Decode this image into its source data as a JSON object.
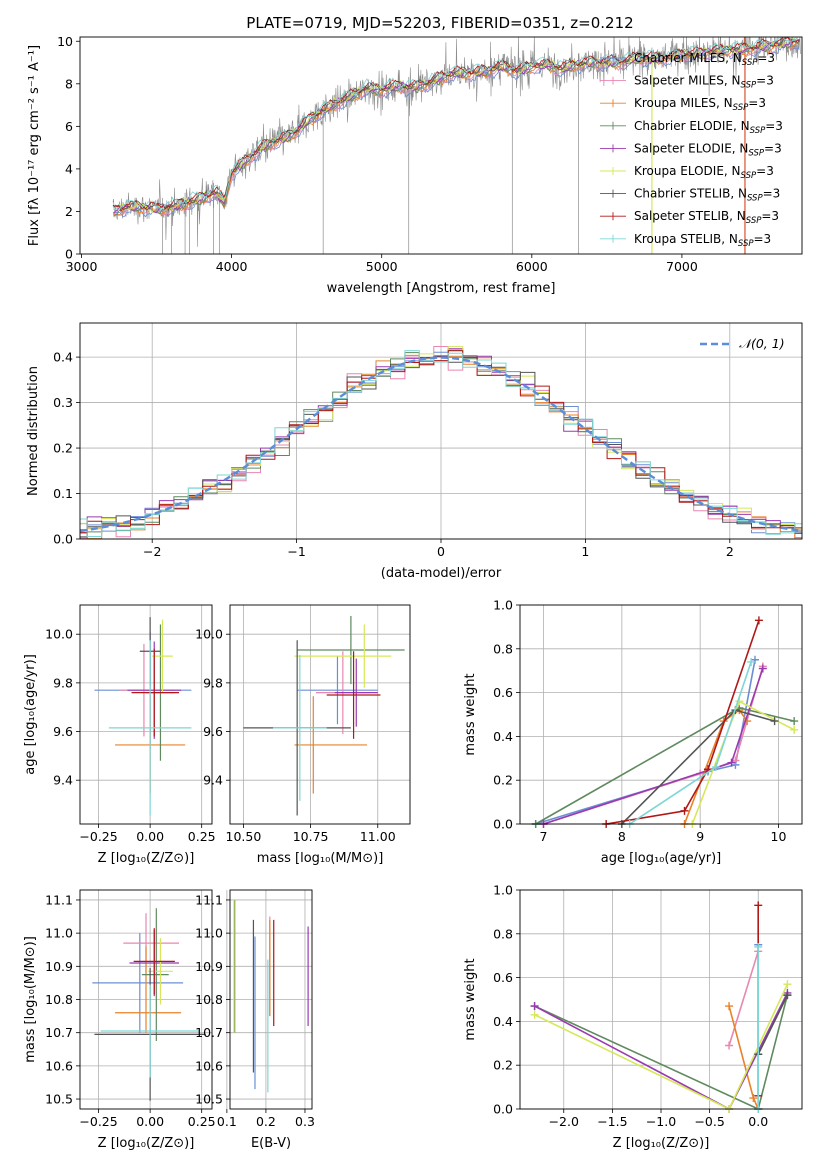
{
  "figure_title": "PLATE=0719, MJD=52203, FIBERID=0351, z=0.212",
  "colors": {
    "Chabrier MILES": "#6b8fd6",
    "Salpeter MILES": "#e887b0",
    "Kroupa MILES": "#e8822a",
    "Chabrier ELODIE": "#5f8a5f",
    "Salpeter ELODIE": "#9a3ab0",
    "Kroupa ELODIE": "#d6e85a",
    "Chabrier STELIB": "#555555",
    "Salpeter STELIB": "#b01818",
    "Kroupa STELIB": "#7fd6d6",
    "data": "#8c8c8c",
    "normal": "#5b8dd9"
  },
  "chart_data": [
    {
      "id": "spectrum",
      "type": "line",
      "title": "PLATE=0719, MJD=52203, FIBERID=0351, z=0.212",
      "xlabel": "wavelength [Angstrom, rest frame]",
      "ylabel": "Flux [fλ 10⁻¹⁷ erg cm⁻² s⁻¹ A⁻¹]",
      "xlim": [
        2990,
        7800
      ],
      "ylim": [
        0,
        10.2
      ],
      "xticks": [
        3000,
        4000,
        5000,
        6000,
        7000
      ],
      "yticks": [
        0,
        2,
        4,
        6,
        8,
        10
      ],
      "grid": false,
      "legend_position": "top-right",
      "legend": [
        {
          "label": "Chabrier MILES, N",
          "sub": "SSP",
          "suffix": "=3",
          "color": "Chabrier MILES"
        },
        {
          "label": "Salpeter MILES, N",
          "sub": "SSP",
          "suffix": "=3",
          "color": "Salpeter MILES"
        },
        {
          "label": "Kroupa MILES, N",
          "sub": "SSP",
          "suffix": "=3",
          "color": "Kroupa MILES"
        },
        {
          "label": "Chabrier ELODIE, N",
          "sub": "SSP",
          "suffix": "=3",
          "color": "Chabrier ELODIE"
        },
        {
          "label": "Salpeter ELODIE, N",
          "sub": "SSP",
          "suffix": "=3",
          "color": "Salpeter ELODIE"
        },
        {
          "label": "Kroupa ELODIE, N",
          "sub": "SSP",
          "suffix": "=3",
          "color": "Kroupa ELODIE"
        },
        {
          "label": "Chabrier STELIB, N",
          "sub": "SSP",
          "suffix": "=3",
          "color": "Chabrier STELIB"
        },
        {
          "label": "Salpeter STELIB, N",
          "sub": "SSP",
          "suffix": "=3",
          "color": "Salpeter STELIB"
        },
        {
          "label": "Kroupa STELIB, N",
          "sub": "SSP",
          "suffix": "=3",
          "color": "Kroupa STELIB"
        }
      ],
      "continuum": {
        "x": [
          3210,
          3300,
          3400,
          3500,
          3600,
          3700,
          3800,
          3900,
          3950,
          4000,
          4100,
          4200,
          4300,
          4400,
          4500,
          4600,
          4700,
          4800,
          4900,
          5000,
          5100,
          5200,
          5300,
          5400,
          5500,
          5600,
          5700,
          5800,
          5900,
          6000,
          6100,
          6200,
          6300,
          6400,
          6500,
          6600,
          6700,
          6800,
          6900,
          7000,
          7100,
          7200,
          7300,
          7400,
          7500,
          7600,
          7700,
          7790
        ],
        "y": [
          2.0,
          2.2,
          2.2,
          2.1,
          2.2,
          2.4,
          2.6,
          2.9,
          2.4,
          3.8,
          4.4,
          5.0,
          5.3,
          5.6,
          6.2,
          6.7,
          7.1,
          7.4,
          7.8,
          7.7,
          7.9,
          7.8,
          8.0,
          8.3,
          8.5,
          8.5,
          8.6,
          8.8,
          8.6,
          8.8,
          8.9,
          8.7,
          8.9,
          9.0,
          9.0,
          9.0,
          9.2,
          9.2,
          9.2,
          9.4,
          9.4,
          9.5,
          9.6,
          9.6,
          9.7,
          9.8,
          9.9,
          10.0
        ]
      }
    },
    {
      "id": "residuals",
      "type": "step-histogram",
      "xlabel": "(data-model)/error",
      "ylabel": "Normed distribution",
      "xlim": [
        -2.5,
        2.5
      ],
      "ylim": [
        0,
        0.475
      ],
      "xticks": [
        -2,
        -1,
        0,
        1,
        2
      ],
      "yticks": [
        0.0,
        0.1,
        0.2,
        0.3,
        0.4
      ],
      "grid": true,
      "legend_position": "top-right",
      "legend": [
        {
          "label": "𝒩(0, 1)",
          "color": "normal",
          "style": "dashed"
        }
      ],
      "bin_width": 0.1
    },
    {
      "id": "age-vs-Z",
      "type": "errorbar",
      "xlabel": "Z [log₁₀(Z/Z⊙)]",
      "ylabel": "age  [log₁₀(age/yr)]",
      "xlim": [
        -0.34,
        0.3
      ],
      "ylim": [
        9.22,
        10.12
      ],
      "xticks": [
        -0.25,
        0.0,
        0.25
      ],
      "xticklabels": [
        "−0.25",
        "0.00",
        "0.25"
      ],
      "yticks": [
        9.4,
        9.6,
        9.8,
        10.0
      ],
      "grid": true,
      "points": [
        {
          "model": "Chabrier MILES",
          "x": 0.0,
          "xerr": [
            0.27,
            0.2
          ],
          "y": 9.77,
          "yerr": [
            0.24,
            0.24
          ]
        },
        {
          "model": "Salpeter MILES",
          "x": -0.03,
          "xerr": [
            0.12,
            0.15
          ],
          "y": 9.77,
          "yerr": [
            0.19,
            0.19
          ]
        },
        {
          "model": "Kroupa MILES",
          "x": 0.0,
          "xerr": [
            0.17,
            0.17
          ],
          "y": 9.545,
          "yerr": [
            0.2,
            0.2
          ]
        },
        {
          "model": "Chabrier ELODIE",
          "x": 0.05,
          "xerr": [
            0.07,
            0.07
          ],
          "y": 9.76,
          "yerr": [
            0.28,
            0.28
          ]
        },
        {
          "model": "Salpeter ELODIE",
          "x": 0.02,
          "xerr": [
            0.13,
            0.13
          ],
          "y": 9.77,
          "yerr": [
            0.2,
            0.2
          ]
        },
        {
          "model": "Kroupa ELODIE",
          "x": 0.06,
          "xerr": [
            0.05,
            0.05
          ],
          "y": 9.91,
          "yerr": [
            0.15,
            0.15
          ]
        },
        {
          "model": "Chabrier STELIB",
          "x": 0.0,
          "xerr": [
            0.05,
            0.05
          ],
          "y": 9.93,
          "yerr": [
            0.14,
            0.14
          ]
        },
        {
          "model": "Salpeter STELIB",
          "x": 0.02,
          "xerr": [
            0.11,
            0.12
          ],
          "y": 9.76,
          "yerr": [
            0.18,
            0.18
          ]
        },
        {
          "model": "Kroupa STELIB",
          "x": 0.0,
          "xerr": [
            0.2,
            0.2
          ],
          "y": 9.615,
          "yerr": [
            0.36,
            0.36
          ]
        }
      ]
    },
    {
      "id": "age-vs-mass",
      "type": "errorbar",
      "xlabel": "mass [log₁₀(M/M⊙)]",
      "xlim": [
        10.45,
        11.12
      ],
      "ylim": [
        9.22,
        10.12
      ],
      "xticks": [
        10.5,
        10.75,
        11.0
      ],
      "xticklabels": [
        "10.50",
        "10.75",
        "11.00"
      ],
      "yticks": [
        9.4,
        9.6,
        9.8,
        10.0
      ],
      "grid": true,
      "points": [
        {
          "model": "Chabrier MILES",
          "x": 10.85,
          "xerr": [
            0.15,
            0.15
          ],
          "y": 9.77,
          "yerr": [
            0.14,
            0.14
          ]
        },
        {
          "model": "Salpeter MILES",
          "x": 10.87,
          "xerr": [
            0.1,
            0.1
          ],
          "y": 9.76,
          "yerr": [
            0.17,
            0.17
          ]
        },
        {
          "model": "Kroupa MILES",
          "x": 10.76,
          "xerr": [
            0.07,
            0.2
          ],
          "y": 9.545,
          "yerr": [
            0.2,
            0.2
          ]
        },
        {
          "model": "Chabrier ELODIE",
          "x": 10.9,
          "xerr": [
            0.2,
            0.2
          ],
          "y": 9.935,
          "yerr": [
            0.14,
            0.14
          ]
        },
        {
          "model": "Salpeter ELODIE",
          "x": 10.92,
          "xerr": [
            0.08,
            0.08
          ],
          "y": 9.76,
          "yerr": [
            0.14,
            0.14
          ]
        },
        {
          "model": "Kroupa ELODIE",
          "x": 10.95,
          "xerr": [
            0.26,
            0.1
          ],
          "y": 9.91,
          "yerr": [
            0.13,
            0.13
          ]
        },
        {
          "model": "Chabrier STELIB",
          "x": 10.7,
          "xerr": [
            0.2,
            0.2
          ],
          "y": 9.615,
          "yerr": [
            0.36,
            0.36
          ]
        },
        {
          "model": "Salpeter STELIB",
          "x": 10.91,
          "xerr": [
            0.1,
            0.1
          ],
          "y": 9.75,
          "yerr": [
            0.18,
            0.18
          ]
        },
        {
          "model": "Kroupa STELIB",
          "x": 10.71,
          "xerr": [
            0.1,
            0.1
          ],
          "y": 9.615,
          "yerr": [
            0.3,
            0.3
          ]
        }
      ]
    },
    {
      "id": "weight-vs-age",
      "type": "line",
      "xlabel": "age  [log₁₀(age/yr)]",
      "ylabel": "mass weight",
      "xlim": [
        6.7,
        10.3
      ],
      "ylim": [
        0,
        1.0
      ],
      "xticks": [
        7,
        8,
        9,
        10
      ],
      "yticks": [
        0.0,
        0.2,
        0.4,
        0.6,
        0.8,
        1.0
      ],
      "grid": true,
      "series": [
        {
          "model": "Chabrier MILES",
          "x": [
            6.9,
            9.1,
            9.45,
            9.7
          ],
          "y": [
            0.0,
            0.24,
            0.27,
            0.75
          ]
        },
        {
          "model": "Salpeter MILES",
          "x": [
            7.0,
            9.0,
            9.45,
            9.8
          ],
          "y": [
            0.0,
            0.23,
            0.29,
            0.72
          ]
        },
        {
          "model": "Kroupa MILES",
          "x": [
            8.8,
            9.3,
            9.5,
            9.6
          ],
          "y": [
            0.0,
            0.47,
            0.52,
            0.47
          ]
        },
        {
          "model": "Chabrier ELODIE",
          "x": [
            6.9,
            9.5,
            10.2
          ],
          "y": [
            0.0,
            0.53,
            0.47
          ]
        },
        {
          "model": "Salpeter ELODIE",
          "x": [
            7.0,
            9.4,
            9.8
          ],
          "y": [
            0.0,
            0.28,
            0.71
          ]
        },
        {
          "model": "Kroupa ELODIE",
          "x": [
            8.9,
            9.5,
            10.2
          ],
          "y": [
            0.0,
            0.56,
            0.43
          ]
        },
        {
          "model": "Chabrier STELIB",
          "x": [
            8.0,
            9.45,
            9.95
          ],
          "y": [
            0.0,
            0.52,
            0.47
          ]
        },
        {
          "model": "Salpeter STELIB",
          "x": [
            7.8,
            8.8,
            9.1,
            9.75
          ],
          "y": [
            0.0,
            0.06,
            0.25,
            0.93
          ]
        },
        {
          "model": "Kroupa STELIB",
          "x": [
            8.1,
            9.2,
            9.65
          ],
          "y": [
            0.0,
            0.26,
            0.74
          ]
        }
      ]
    },
    {
      "id": "mass-vs-Z",
      "type": "errorbar",
      "xlabel": "Z [log₁₀(Z/Z⊙)]",
      "ylabel": "mass [log₁₀(M/M⊙)]",
      "xlim": [
        -0.34,
        0.3
      ],
      "ylim": [
        10.47,
        11.13
      ],
      "xticks": [
        -0.25,
        0.0,
        0.25
      ],
      "xticklabels": [
        "−0.25",
        "0.00",
        "0.25"
      ],
      "yticks": [
        10.5,
        10.6,
        10.7,
        10.8,
        10.9,
        11.0,
        11.1
      ],
      "grid": true,
      "points": [
        {
          "model": "Chabrier MILES",
          "x": -0.05,
          "xerr": [
            0.23,
            0.21
          ],
          "y": 10.85,
          "yerr": [
            0.15,
            0.15
          ]
        },
        {
          "model": "Salpeter MILES",
          "x": -0.02,
          "xerr": [
            0.11,
            0.16
          ],
          "y": 10.97,
          "yerr": [
            0.09,
            0.09
          ]
        },
        {
          "model": "Kroupa MILES",
          "x": -0.02,
          "xerr": [
            0.15,
            0.17
          ],
          "y": 10.76,
          "yerr": [
            0.06,
            0.2
          ]
        },
        {
          "model": "Chabrier ELODIE",
          "x": 0.03,
          "xerr": [
            0.07,
            0.06
          ],
          "y": 10.875,
          "yerr": [
            0.2,
            0.2
          ]
        },
        {
          "model": "Salpeter ELODIE",
          "x": 0.02,
          "xerr": [
            0.12,
            0.12
          ],
          "y": 10.91,
          "yerr": [
            0.1,
            0.1
          ]
        },
        {
          "model": "Kroupa ELODIE",
          "x": 0.05,
          "xerr": [
            0.06,
            0.06
          ],
          "y": 10.885,
          "yerr": [
            0.1,
            0.1
          ]
        },
        {
          "model": "Chabrier STELIB",
          "x": 0.0,
          "xerr": [
            0.27,
            0.27
          ],
          "y": 10.695,
          "yerr": [
            0.2,
            0.2
          ]
        },
        {
          "model": "Salpeter STELIB",
          "x": 0.02,
          "xerr": [
            0.1,
            0.1
          ],
          "y": 10.915,
          "yerr": [
            0.1,
            0.1
          ]
        },
        {
          "model": "Kroupa STELIB",
          "x": 0.0,
          "xerr": [
            0.24,
            0.24
          ],
          "y": 10.705,
          "yerr": [
            0.14,
            0.14
          ]
        }
      ]
    },
    {
      "id": "mass-vs-ebv",
      "type": "errorbar",
      "xlabel": "E(B-V)",
      "xlim": [
        0.108,
        0.318
      ],
      "ylim": [
        10.47,
        11.13
      ],
      "xticks": [
        0.1,
        0.2,
        0.3
      ],
      "xticklabels": [
        "0.1",
        "0.2",
        "0.3"
      ],
      "yticks": [
        10.5,
        10.6,
        10.7,
        10.8,
        10.9,
        11.0,
        11.1
      ],
      "grid": true,
      "points": [
        {
          "model": "Chabrier MILES",
          "x": 0.172,
          "y": 10.76,
          "yerr": [
            0.23,
            0.23
          ]
        },
        {
          "model": "Salpeter MILES",
          "x": 0.21,
          "y": 10.9,
          "yerr": [
            0.15,
            0.15
          ]
        },
        {
          "model": "Kroupa MILES",
          "x": 0.21,
          "y": 10.82,
          "yerr": [
            0.07,
            0.22
          ]
        },
        {
          "model": "Chabrier ELODIE",
          "x": 0.12,
          "y": 10.9,
          "yerr": [
            0.2,
            0.2
          ]
        },
        {
          "model": "Salpeter ELODIE",
          "x": 0.308,
          "y": 10.87,
          "yerr": [
            0.15,
            0.15
          ]
        },
        {
          "model": "Kroupa ELODIE",
          "x": 0.118,
          "y": 10.9,
          "yerr": [
            0.2,
            0.2
          ]
        },
        {
          "model": "Chabrier STELIB",
          "x": 0.168,
          "y": 10.81,
          "yerr": [
            0.23,
            0.23
          ]
        },
        {
          "model": "Salpeter STELIB",
          "x": 0.22,
          "y": 10.88,
          "yerr": [
            0.16,
            0.16
          ]
        },
        {
          "model": "Kroupa STELIB",
          "x": 0.205,
          "y": 10.72,
          "yerr": [
            0.2,
            0.2
          ]
        }
      ]
    },
    {
      "id": "weight-vs-Z",
      "type": "line",
      "xlabel": "Z [log₁₀(Z/Z⊙)]",
      "ylabel": "mass weight",
      "xlim": [
        -2.45,
        0.45
      ],
      "ylim": [
        0,
        1.0
      ],
      "xticks": [
        -2.0,
        -1.5,
        -1.0,
        -0.5,
        0.0
      ],
      "xticklabels": [
        "−2.0",
        "−1.5",
        "−1.0",
        "−0.5",
        "0.0"
      ],
      "yticks": [
        0.0,
        0.2,
        0.4,
        0.6,
        0.8,
        1.0
      ],
      "grid": true,
      "series": [
        {
          "model": "Chabrier MILES",
          "x": [
            0.0,
            0.0,
            0.0
          ],
          "y": [
            0.0,
            0.25,
            0.75
          ]
        },
        {
          "model": "Salpeter MILES",
          "x": [
            -0.3,
            0.0
          ],
          "y": [
            0.29,
            0.72
          ]
        },
        {
          "model": "Kroupa MILES",
          "x": [
            -0.3,
            -0.05,
            0.0
          ],
          "y": [
            0.47,
            0.05,
            0.0
          ]
        },
        {
          "model": "Chabrier ELODIE",
          "x": [
            -2.3,
            0.0,
            0.3
          ],
          "y": [
            0.47,
            0.0,
            0.52
          ]
        },
        {
          "model": "Salpeter ELODIE",
          "x": [
            -2.3,
            -0.3,
            0.3
          ],
          "y": [
            0.47,
            0.0,
            0.53
          ]
        },
        {
          "model": "Kroupa ELODIE",
          "x": [
            -2.3,
            -0.3,
            0.3
          ],
          "y": [
            0.43,
            0.0,
            0.57
          ]
        },
        {
          "model": "Chabrier STELIB",
          "x": [
            0.0,
            0.3
          ],
          "y": [
            0.25,
            0.52
          ]
        },
        {
          "model": "Salpeter STELIB",
          "x": [
            0.0,
            0.0
          ],
          "y": [
            0.06,
            0.93
          ]
        },
        {
          "model": "Kroupa STELIB",
          "x": [
            0.0,
            0.0
          ],
          "y": [
            0.0,
            0.74
          ]
        }
      ]
    }
  ]
}
